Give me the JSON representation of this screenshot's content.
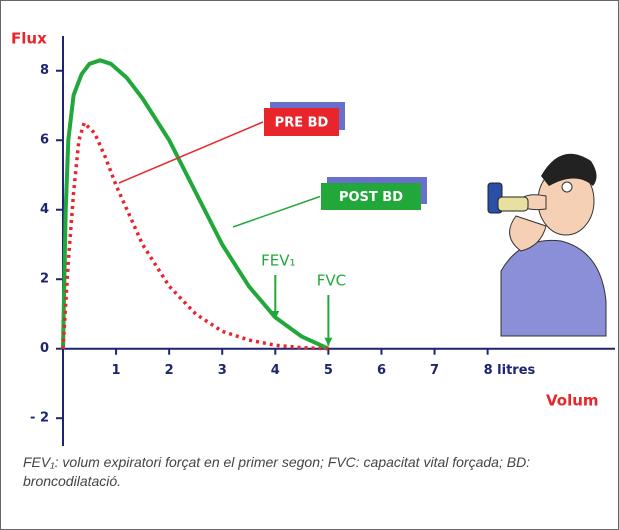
{
  "chart_data": {
    "type": "line",
    "y_label": "Flux",
    "x_label": "Volum",
    "series": [
      {
        "name": "POST BD",
        "color": "#22a83a",
        "style": "solid",
        "x": [
          0,
          0.05,
          0.1,
          0.2,
          0.35,
          0.5,
          0.7,
          0.9,
          1.2,
          1.5,
          2,
          2.5,
          3,
          3.5,
          4,
          4.5,
          5
        ],
        "values": [
          0,
          4,
          6,
          7.3,
          7.9,
          8.2,
          8.3,
          8.2,
          7.8,
          7.2,
          6.0,
          4.5,
          3.0,
          1.8,
          0.9,
          0.35,
          0
        ]
      },
      {
        "name": "PRE BD",
        "color": "#e8252a",
        "style": "dotted",
        "x": [
          0,
          0.1,
          0.2,
          0.3,
          0.4,
          0.6,
          0.8,
          1,
          1.5,
          2,
          2.5,
          3,
          3.5,
          4,
          4.5,
          5
        ],
        "values": [
          0,
          2.5,
          4.5,
          6,
          6.5,
          6.2,
          5.5,
          4.7,
          3.0,
          1.8,
          1.0,
          0.5,
          0.25,
          0.1,
          0.03,
          0
        ]
      }
    ],
    "xlim": [
      0,
      10.4
    ],
    "ylim": [
      -2.8,
      9
    ],
    "xticks": [
      1,
      2,
      3,
      4,
      5,
      6,
      7,
      {
        "value": 8,
        "label": "8 litres"
      }
    ],
    "yticks": [
      8,
      6,
      4,
      2,
      0,
      {
        "value": -2,
        "label": "- 2"
      }
    ],
    "annotations": [
      {
        "text": "FEV₁",
        "x": 4
      },
      {
        "text": "FVC",
        "x": 5
      }
    ],
    "caption": "FEV₁: volum expiratori forçat en el primer segon; FVC: capacitat vital forçada; BD: broncodilatació."
  }
}
